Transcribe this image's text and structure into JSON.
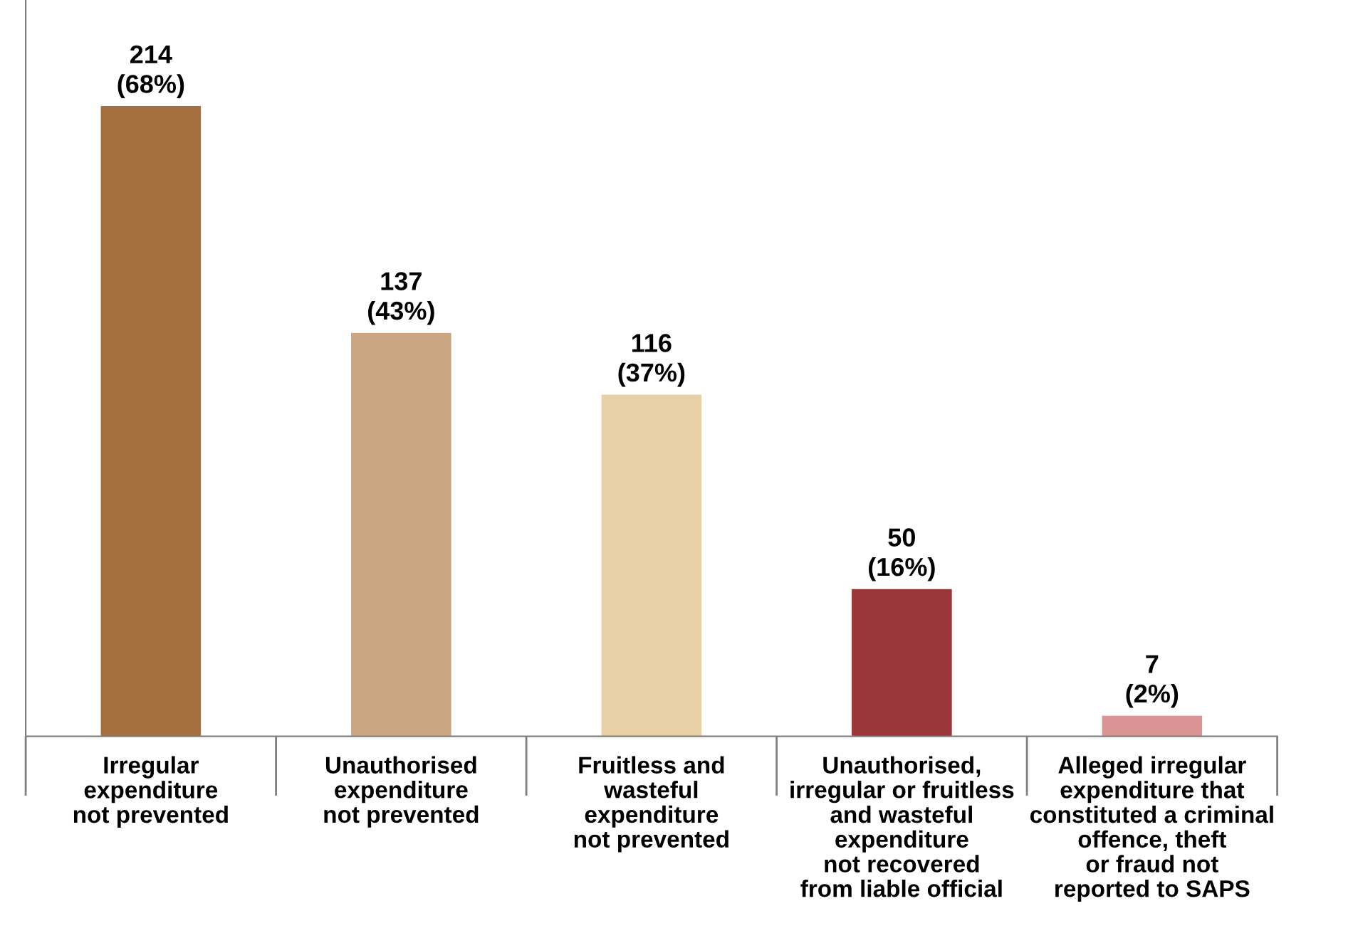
{
  "chart_data": {
    "type": "bar",
    "categories": [
      "Irregular\nexpenditure\nnot prevented",
      "Unauthorised\nexpenditure\nnot prevented",
      "Fruitless and\nwasteful\nexpenditure\nnot prevented",
      "Unauthorised,\nirregular or fruitless\nand wasteful\nexpenditure\nnot recovered\nfrom liable official",
      "Alleged irregular\nexpenditure that\nconstituted a criminal\noffence, theft\nor fraud not\nreported to SAPS"
    ],
    "values": [
      214,
      137,
      116,
      50,
      7
    ],
    "value_labels": [
      "214\n(68%)",
      "137\n(43%)",
      "116\n(37%)",
      "50\n(16%)",
      "7\n(2%)"
    ],
    "colors": [
      "#a5703d",
      "#cba683",
      "#e8d0a6",
      "#99363a",
      "#d99493"
    ],
    "ylim": [
      0,
      250
    ],
    "tick_labels": "x",
    "grid": false,
    "legend": false
  }
}
